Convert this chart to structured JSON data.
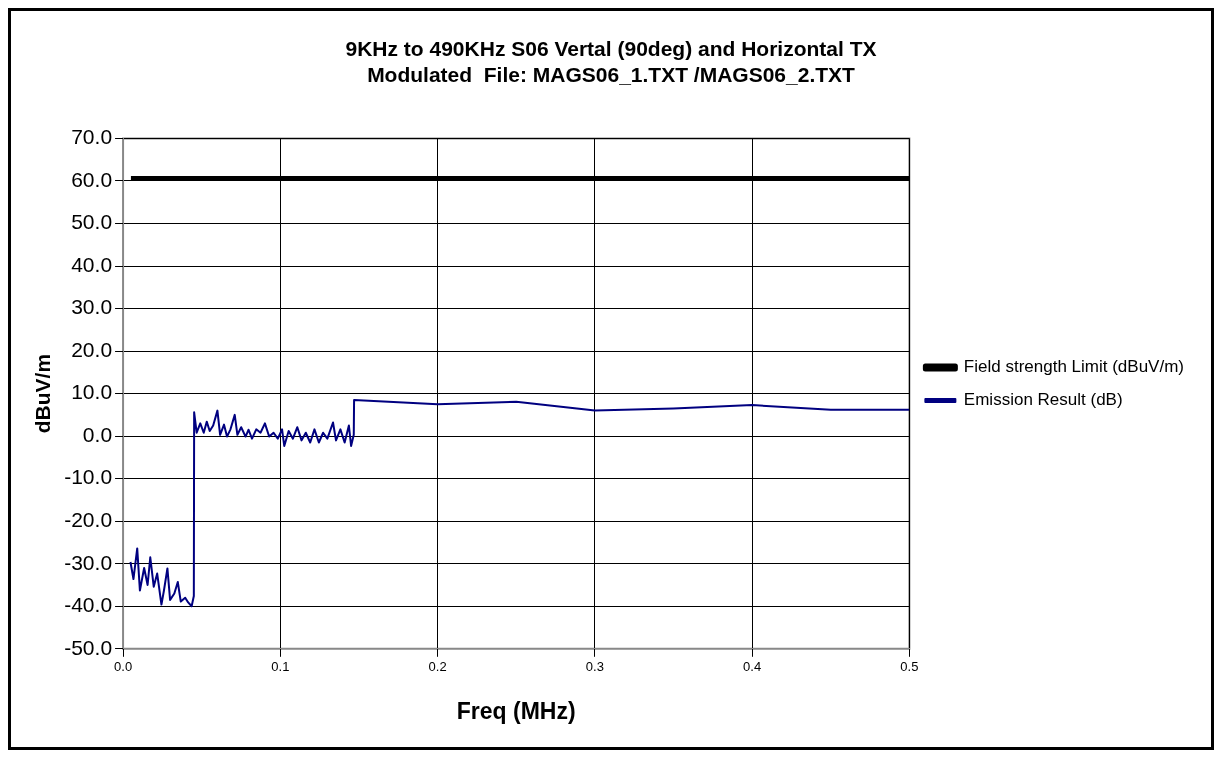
{
  "chart_data": {
    "type": "line",
    "title": [
      "9KHz to 490KHz S06 Vertal (90deg) and Horizontal TX",
      "Modulated  File: MAGS06_1.TXT /MAGS06_2.TXT"
    ],
    "xlabel": "Freq (MHz)",
    "ylabel": "dBuV/m",
    "xlim": [
      0,
      0.5
    ],
    "xticks": [
      {
        "value": 0,
        "label": "0.0"
      },
      0.1,
      0.2,
      0.3,
      0.4,
      0.5
    ],
    "ylim": [
      -50,
      70
    ],
    "yticks": [
      {
        "value": -50,
        "label": "-50.0"
      },
      {
        "value": -40,
        "label": "-40.0"
      },
      {
        "value": -30,
        "label": "-30.0"
      },
      {
        "value": -20,
        "label": "-20.0"
      },
      {
        "value": -10,
        "label": "-10.0"
      },
      {
        "value": 0,
        "label": "0.0"
      },
      {
        "value": 10,
        "label": "10.0"
      },
      {
        "value": 20,
        "label": "20.0"
      },
      {
        "value": 30,
        "label": "30.0"
      },
      {
        "value": 40,
        "label": "40.0"
      },
      {
        "value": 50,
        "label": "50.0"
      },
      {
        "value": 60,
        "label": "60.0"
      },
      {
        "value": 70,
        "label": "70.0"
      }
    ],
    "grid": true,
    "legend": "right",
    "marker": "none",
    "line_style": "solid",
    "series": [
      {
        "name": "Field strength Limit (dBuV/m)",
        "color": "#000000",
        "x": [
          0.005,
          0.5
        ],
        "values": [
          60.6,
          60.6
        ]
      },
      {
        "name": "Emission Result (dB)",
        "color": "#000080",
        "x": [
          0.0047,
          0.0066,
          0.009,
          0.0107,
          0.0134,
          0.0156,
          0.0173,
          0.0195,
          0.0217,
          0.0244,
          0.026,
          0.0282,
          0.0299,
          0.0326,
          0.0348,
          0.0367,
          0.0395,
          0.0414,
          0.0436,
          0.045,
          0.0452,
          0.0468,
          0.0491,
          0.0513,
          0.0532,
          0.0551,
          0.0573,
          0.06,
          0.0617,
          0.0642,
          0.0661,
          0.0683,
          0.071,
          0.0727,
          0.0751,
          0.0779,
          0.0798,
          0.082,
          0.0847,
          0.0874,
          0.0902,
          0.0929,
          0.0957,
          0.0984,
          0.1011,
          0.1025,
          0.1053,
          0.108,
          0.1108,
          0.1135,
          0.1162,
          0.119,
          0.1217,
          0.1245,
          0.1272,
          0.1299,
          0.1335,
          0.1354,
          0.1382,
          0.1409,
          0.1436,
          0.145,
          0.1467,
          0.1469,
          0.2,
          0.25,
          0.3,
          0.35,
          0.4,
          0.45,
          0.5
        ],
        "values": [
          -29.6,
          -33.6,
          -26.4,
          -36.3,
          -31,
          -35,
          -28.5,
          -35.4,
          -32.3,
          -39.6,
          -36.3,
          -31.1,
          -38.5,
          -37,
          -34.3,
          -38.9,
          -38,
          -39.1,
          -40,
          -37.6,
          5.6,
          0.8,
          3,
          0.8,
          3.4,
          1.2,
          2.5,
          6,
          0.3,
          2.7,
          -0.1,
          1.6,
          5,
          0.3,
          2.1,
          -0.1,
          1.5,
          -0.6,
          1.6,
          0.8,
          3,
          -0.1,
          0.8,
          -0.6,
          1.6,
          -2.3,
          1.2,
          -0.6,
          2.1,
          -1,
          0.8,
          -1.5,
          1.6,
          -1.5,
          0.8,
          -0.6,
          3.2,
          -1,
          1.6,
          -1.5,
          2.5,
          -2.3,
          0.3,
          8.5,
          7.5,
          8.1,
          6,
          6.5,
          7.3,
          6.2,
          6.2
        ]
      }
    ]
  }
}
